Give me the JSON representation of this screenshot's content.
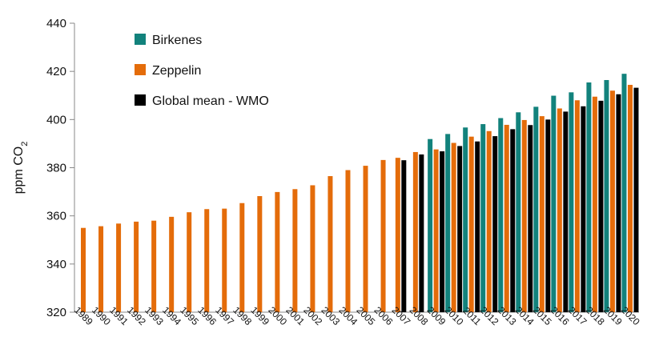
{
  "chart_data": {
    "type": "bar",
    "categories": [
      "1989",
      "1990",
      "1991",
      "1992",
      "1993",
      "1994",
      "1995",
      "1996",
      "1997",
      "1998",
      "1999",
      "2000",
      "2001",
      "2002",
      "2003",
      "2004",
      "2005",
      "2006",
      "2007",
      "2008",
      "2009",
      "2010",
      "2011",
      "2012",
      "2013",
      "2014",
      "2015",
      "2016",
      "2017",
      "2018",
      "2019",
      "2020"
    ],
    "series": [
      {
        "name": "Birkenes",
        "color": "#12827c",
        "values": [
          null,
          null,
          null,
          null,
          null,
          null,
          null,
          null,
          null,
          null,
          null,
          null,
          null,
          null,
          null,
          null,
          null,
          null,
          null,
          null,
          391.9,
          394.0,
          396.7,
          398.1,
          400.6,
          403.0,
          405.3,
          409.9,
          411.3,
          415.4,
          416.4,
          419.0
        ]
      },
      {
        "name": "Zeppelin",
        "color": "#e46c0a",
        "values": [
          355.0,
          355.7,
          356.8,
          357.6,
          358.0,
          359.6,
          361.5,
          362.8,
          363.0,
          365.3,
          368.2,
          369.9,
          371.1,
          372.7,
          376.5,
          379.0,
          380.8,
          383.2,
          384.1,
          386.5,
          387.6,
          390.3,
          392.9,
          395.2,
          397.8,
          399.8,
          401.4,
          404.6,
          408.0,
          409.5,
          412.0,
          414.4
        ]
      },
      {
        "name": "Global mean - WMO",
        "color": "#000000",
        "values": [
          null,
          null,
          null,
          null,
          null,
          null,
          null,
          null,
          null,
          null,
          null,
          null,
          null,
          null,
          null,
          null,
          null,
          null,
          383.1,
          385.5,
          386.8,
          389.0,
          390.9,
          393.1,
          396.0,
          397.7,
          400.0,
          403.3,
          405.5,
          407.8,
          410.5,
          413.2
        ]
      }
    ],
    "ylabel": "ppm CO",
    "ylabel_subscript": "2",
    "ylim": [
      320,
      440
    ],
    "yticks": [
      320,
      340,
      360,
      380,
      400,
      420,
      440
    ],
    "legend": "top-left",
    "grid": false
  }
}
